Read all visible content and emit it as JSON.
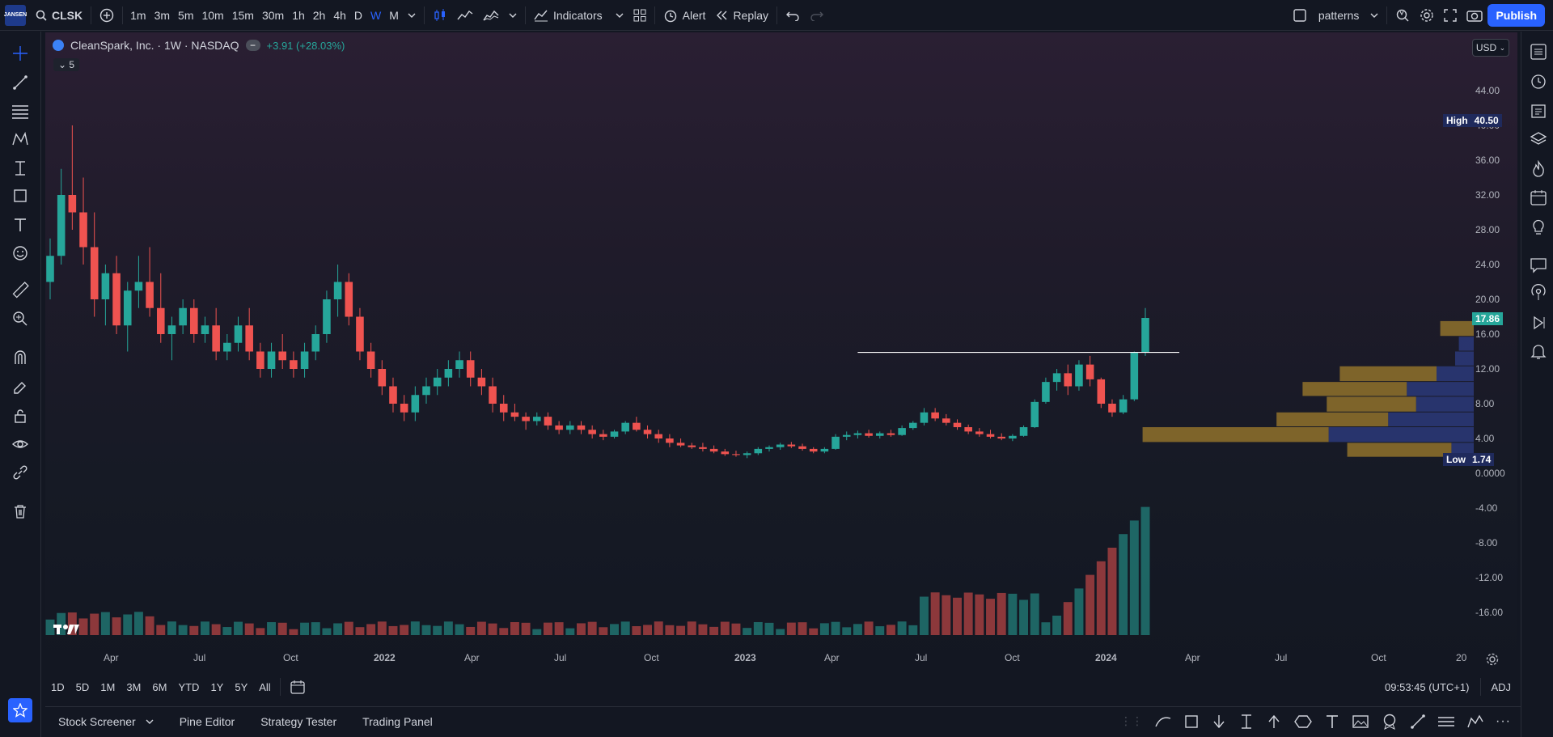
{
  "topbar": {
    "logo_text": "JANSEN",
    "symbol": "CLSK",
    "timeframes": [
      "1m",
      "3m",
      "5m",
      "10m",
      "15m",
      "30m",
      "1h",
      "2h",
      "4h",
      "D",
      "W",
      "M"
    ],
    "active_timeframe": "W",
    "indicators_label": "Indicators",
    "alert_label": "Alert",
    "replay_label": "Replay",
    "layout_name": "patterns",
    "publish_label": "Publish"
  },
  "legend": {
    "title": "CleanSpark, Inc. · 1W · NASDAQ",
    "change": "+3.91 (+28.03%)",
    "collapse_count": "5"
  },
  "price_scale": {
    "currency": "USD",
    "ticks": [
      "44.00",
      "40.00",
      "36.00",
      "32.00",
      "28.00",
      "24.00",
      "20.00",
      "16.00",
      "12.00",
      "8.00",
      "4.00",
      "0.0000",
      "-4.00",
      "-8.00",
      "-12.00",
      "-16.00"
    ],
    "high_label": "High",
    "high_value": "40.50",
    "low_label": "Low",
    "low_value": "1.74",
    "last_price": "17.86"
  },
  "time_axis": {
    "labels": [
      "Apr",
      "Jul",
      "Oct",
      "2022",
      "Apr",
      "Jul",
      "Oct",
      "2023",
      "Apr",
      "Jul",
      "Oct",
      "2024",
      "Apr",
      "Jul",
      "Oct",
      "20"
    ]
  },
  "range_bar": {
    "ranges": [
      "1D",
      "5D",
      "1M",
      "3M",
      "6M",
      "YTD",
      "1Y",
      "5Y",
      "All"
    ],
    "clock": "09:53:45 (UTC+1)",
    "adj": "ADJ"
  },
  "footer": {
    "tabs": [
      "Stock Screener",
      "Pine Editor",
      "Strategy Tester",
      "Trading Panel"
    ]
  },
  "colors": {
    "up": "#26a69a",
    "down": "#ef5350",
    "accent": "#2962ff",
    "profile_gold": "#8a6d2b",
    "profile_blue": "#2b3a7a"
  },
  "chart_data": {
    "type": "candlestick",
    "title": "CleanSpark, Inc. · 1W · NASDAQ",
    "ylim": [
      -18,
      46
    ],
    "resistance_level": 13.9,
    "candles": [
      [
        22,
        27,
        20,
        25
      ],
      [
        25,
        35,
        24,
        32
      ],
      [
        32,
        40,
        28,
        30
      ],
      [
        30,
        34,
        24,
        26
      ],
      [
        26,
        30,
        18,
        20
      ],
      [
        20,
        24,
        17,
        23
      ],
      [
        23,
        25,
        16,
        17
      ],
      [
        17,
        22,
        14,
        21
      ],
      [
        21,
        25,
        19,
        22
      ],
      [
        22,
        26,
        18,
        19
      ],
      [
        19,
        23,
        15,
        16
      ],
      [
        16,
        18,
        13,
        17
      ],
      [
        17,
        20,
        16,
        19
      ],
      [
        19,
        20,
        15,
        16
      ],
      [
        16,
        18,
        15,
        17
      ],
      [
        17,
        19,
        13,
        14
      ],
      [
        14,
        16,
        13,
        15
      ],
      [
        15,
        18,
        14,
        17
      ],
      [
        17,
        19,
        13,
        14
      ],
      [
        14,
        15,
        11,
        12
      ],
      [
        12,
        15,
        11,
        14
      ],
      [
        14,
        16,
        12,
        13
      ],
      [
        13,
        14,
        11,
        12
      ],
      [
        12,
        15,
        11,
        14
      ],
      [
        14,
        17,
        13,
        16
      ],
      [
        16,
        21,
        15,
        20
      ],
      [
        20,
        24,
        18,
        22
      ],
      [
        22,
        23,
        17,
        18
      ],
      [
        18,
        19,
        13,
        14
      ],
      [
        14,
        15,
        11,
        12
      ],
      [
        12,
        13,
        9,
        10
      ],
      [
        10,
        11,
        7,
        8
      ],
      [
        8,
        9,
        6,
        7
      ],
      [
        7,
        10,
        6,
        9
      ],
      [
        9,
        11,
        8,
        10
      ],
      [
        10,
        12,
        9,
        11
      ],
      [
        11,
        13,
        10,
        12
      ],
      [
        12,
        14,
        11,
        13
      ],
      [
        13,
        14,
        10,
        11
      ],
      [
        11,
        12,
        9,
        10
      ],
      [
        10,
        11,
        7,
        8
      ],
      [
        8,
        9,
        6,
        7
      ],
      [
        7,
        8,
        6,
        6.5
      ],
      [
        6.5,
        7,
        5,
        6
      ],
      [
        6,
        7,
        5.5,
        6.5
      ],
      [
        6.5,
        7,
        5,
        5.5
      ],
      [
        5.5,
        6,
        4.5,
        5
      ],
      [
        5,
        6,
        4.5,
        5.5
      ],
      [
        5.5,
        6,
        4.5,
        5
      ],
      [
        5,
        5.5,
        4,
        4.5
      ],
      [
        4.5,
        5,
        3.8,
        4.2
      ],
      [
        4.2,
        5,
        4,
        4.8
      ],
      [
        4.8,
        6,
        4.5,
        5.8
      ],
      [
        5.8,
        6.5,
        4.8,
        5
      ],
      [
        5,
        5.5,
        4,
        4.5
      ],
      [
        4.5,
        5,
        3.5,
        4
      ],
      [
        4,
        4.5,
        3,
        3.5
      ],
      [
        3.5,
        4,
        3,
        3.2
      ],
      [
        3.2,
        3.5,
        2.8,
        3
      ],
      [
        3,
        3.5,
        2.5,
        2.8
      ],
      [
        2.8,
        3.2,
        2.3,
        2.5
      ],
      [
        2.5,
        2.8,
        2,
        2.2
      ],
      [
        2.2,
        2.6,
        1.9,
        2.1
      ],
      [
        2.1,
        2.5,
        1.74,
        2.3
      ],
      [
        2.3,
        3,
        2.1,
        2.8
      ],
      [
        2.8,
        3.2,
        2.5,
        3
      ],
      [
        3,
        3.5,
        2.7,
        3.3
      ],
      [
        3.3,
        3.6,
        2.9,
        3.1
      ],
      [
        3.1,
        3.4,
        2.6,
        2.8
      ],
      [
        2.8,
        3,
        2.3,
        2.5
      ],
      [
        2.5,
        3,
        2.3,
        2.8
      ],
      [
        2.8,
        4.5,
        2.7,
        4.2
      ],
      [
        4.2,
        4.8,
        3.8,
        4.4
      ],
      [
        4.4,
        4.9,
        4,
        4.6
      ],
      [
        4.6,
        5,
        4.1,
        4.3
      ],
      [
        4.3,
        4.8,
        4,
        4.6
      ],
      [
        4.6,
        5,
        4.2,
        4.4
      ],
      [
        4.4,
        5.5,
        4.3,
        5.2
      ],
      [
        5.2,
        6,
        5,
        5.8
      ],
      [
        5.8,
        7.5,
        5.5,
        7
      ],
      [
        7,
        7.5,
        6,
        6.3
      ],
      [
        6.3,
        6.8,
        5.5,
        5.8
      ],
      [
        5.8,
        6.2,
        5,
        5.3
      ],
      [
        5.3,
        5.6,
        4.5,
        4.8
      ],
      [
        4.8,
        5.2,
        4.2,
        4.5
      ],
      [
        4.5,
        5,
        4,
        4.2
      ],
      [
        4.2,
        4.6,
        3.8,
        4
      ],
      [
        4,
        4.5,
        3.7,
        4.3
      ],
      [
        4.3,
        5.5,
        4.2,
        5.3
      ],
      [
        5.3,
        8.5,
        5.2,
        8.2
      ],
      [
        8.2,
        11,
        8,
        10.5
      ],
      [
        10.5,
        12,
        9.5,
        11.5
      ],
      [
        11.5,
        12.5,
        9,
        10
      ],
      [
        10,
        13,
        9.5,
        12.5
      ],
      [
        12.5,
        13.5,
        10,
        10.8
      ],
      [
        10.8,
        11,
        7.5,
        8
      ],
      [
        8,
        8.5,
        6.5,
        7
      ],
      [
        7,
        9,
        6.8,
        8.5
      ],
      [
        8.5,
        14,
        8.3,
        13.95
      ],
      [
        13.95,
        19,
        13.5,
        17.86
      ]
    ],
    "volume_profile_bins_gold": [
      [
        3.5,
        5.3,
        1000
      ],
      [
        5.3,
        7,
        600
      ],
      [
        7,
        8.8,
        480
      ],
      [
        8.8,
        10.5,
        560
      ],
      [
        10.5,
        12.3,
        520
      ],
      [
        1.8,
        3.5,
        560
      ],
      [
        15.7,
        17.5,
        180
      ]
    ],
    "volume_profile_bins_blue": [
      [
        3.5,
        5.3,
        780
      ],
      [
        5.3,
        7,
        460
      ],
      [
        7,
        8.8,
        310
      ],
      [
        8.8,
        10.5,
        360
      ],
      [
        10.5,
        12.3,
        200
      ],
      [
        1.8,
        3.5,
        120
      ],
      [
        12.3,
        14,
        100
      ],
      [
        14,
        15.7,
        80
      ]
    ]
  }
}
